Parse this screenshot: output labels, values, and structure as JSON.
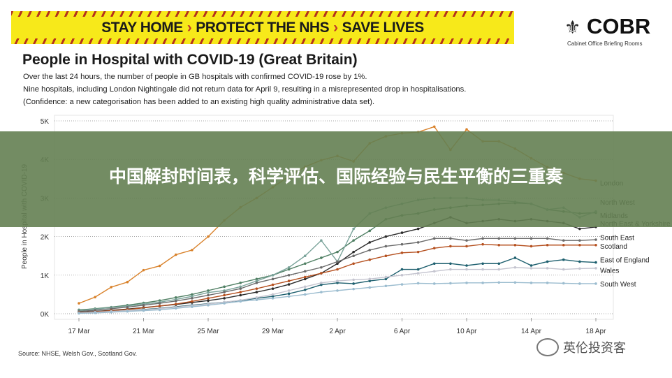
{
  "banner": {
    "part1": "STAY HOME",
    "part2": "PROTECT THE NHS",
    "part3": "SAVE LIVES",
    "chevron": "›"
  },
  "logo": {
    "title": "COBR",
    "subtitle": "Cabinet Office Briefing Rooms"
  },
  "header": {
    "title": "People in Hospital with COVID-19 (Great Britain)",
    "lines": [
      "Over the last 24 hours, the number of people in GB hospitals with confirmed COVID-19 rose by 1%.",
      "Nine hospitals, including London Nightingale did not return data for April 9, resulting in a misrepresented drop in hospitalisations.",
      "(Confidence: a new categorisation has been added to an existing high quality administrative data set)."
    ]
  },
  "source": "Source: NHSE, Welsh Gov., Scotland Gov.",
  "overlay": {
    "headline": "中国解封时间表，科学评估、国际经验与民生平衡的三重奏"
  },
  "watermark": {
    "text": "英伦投资客",
    "icon": "wechat-icon"
  },
  "chart_data": {
    "type": "line",
    "title": "People in Hospital with COVID-19 (Great Britain)",
    "xlabel": "",
    "ylabel": "People in Hospital with COVID-19",
    "ylim": [
      0,
      5000
    ],
    "yticks": [
      0,
      1000,
      2000,
      3000,
      4000,
      5000
    ],
    "ytick_labels": [
      "0K",
      "1K",
      "2K",
      "3K",
      "4K",
      "5K"
    ],
    "x_start": "17 Mar",
    "n_days": 33,
    "xtick_labels": [
      "17 Mar",
      "21 Mar",
      "25 Mar",
      "29 Mar",
      "2 Apr",
      "6 Apr",
      "10 Apr",
      "14 Apr",
      "18 Apr"
    ],
    "xtick_days": [
      0,
      4,
      8,
      12,
      16,
      20,
      24,
      28,
      32
    ],
    "grid": true,
    "series": [
      {
        "name": "London",
        "color": "#d9822b",
        "values": [
          270,
          430,
          690,
          820,
          1130,
          1240,
          1530,
          1650,
          2000,
          2420,
          2760,
          3000,
          3280,
          3560,
          3810,
          3980,
          4090,
          3950,
          4420,
          4600,
          4680,
          4710,
          4850,
          4250,
          4780,
          4470,
          4470,
          4280,
          4030,
          3800,
          3650,
          3500,
          3450
        ]
      },
      {
        "name": "North West",
        "color": "#4f7f63",
        "values": [
          100,
          130,
          170,
          220,
          280,
          340,
          420,
          500,
          600,
          700,
          800,
          900,
          1000,
          1150,
          1300,
          1450,
          1600,
          1900,
          2150,
          2450,
          2550,
          2600,
          2700,
          2750,
          2800,
          2820,
          2850,
          2870,
          2850,
          2700,
          2650,
          2600,
          2620
        ]
      },
      {
        "name": "Midlands",
        "color": "#7aa39a",
        "values": [
          80,
          120,
          160,
          200,
          250,
          300,
          370,
          450,
          550,
          600,
          700,
          850,
          1000,
          1200,
          1500,
          1900,
          1350,
          2200,
          2600,
          2750,
          2850,
          2950,
          3000,
          3000,
          3000,
          2950,
          2950,
          2900,
          2850,
          2700,
          2750,
          2500,
          2650
        ]
      },
      {
        "name": "North East & Yorkshire",
        "color": "#2b2b2b",
        "values": [
          40,
          60,
          90,
          120,
          160,
          200,
          240,
          290,
          340,
          400,
          480,
          560,
          650,
          760,
          900,
          1050,
          1300,
          1600,
          1850,
          2000,
          2100,
          2200,
          2350,
          2500,
          2350,
          2400,
          2450,
          2400,
          2450,
          2400,
          2350,
          2200,
          2250
        ]
      },
      {
        "name": "South East",
        "color": "#6b6b6b",
        "values": [
          60,
          90,
          130,
          170,
          220,
          270,
          330,
          400,
          480,
          560,
          650,
          800,
          900,
          1000,
          1100,
          1200,
          1350,
          1500,
          1650,
          1750,
          1800,
          1850,
          1950,
          1950,
          1900,
          1950,
          1950,
          1950,
          1950,
          1950,
          1900,
          1900,
          1920
        ]
      },
      {
        "name": "Scotland",
        "color": "#b5501f",
        "values": [
          30,
          50,
          80,
          110,
          150,
          200,
          250,
          320,
          400,
          480,
          560,
          650,
          750,
          850,
          950,
          1050,
          1150,
          1300,
          1400,
          1500,
          1580,
          1600,
          1700,
          1750,
          1750,
          1800,
          1780,
          1780,
          1750,
          1780,
          1780,
          1780,
          1780
        ]
      },
      {
        "name": "East of England",
        "color": "#1d5f6e",
        "values": [
          20,
          40,
          60,
          80,
          110,
          140,
          180,
          220,
          260,
          300,
          340,
          400,
          450,
          520,
          620,
          750,
          800,
          780,
          850,
          900,
          1150,
          1150,
          1300,
          1300,
          1250,
          1300,
          1300,
          1450,
          1250,
          1350,
          1400,
          1350,
          1330
        ]
      },
      {
        "name": "Wales",
        "color": "#c4c4cf",
        "values": [
          20,
          40,
          60,
          80,
          100,
          130,
          170,
          210,
          250,
          300,
          350,
          420,
          500,
          600,
          700,
          800,
          850,
          880,
          900,
          950,
          1000,
          1050,
          1100,
          1150,
          1150,
          1150,
          1150,
          1200,
          1180,
          1180,
          1150,
          1170,
          1180
        ]
      },
      {
        "name": "South West",
        "color": "#9bbccf",
        "values": [
          10,
          20,
          40,
          60,
          80,
          100,
          140,
          180,
          220,
          270,
          320,
          360,
          400,
          450,
          500,
          560,
          600,
          640,
          680,
          720,
          760,
          790,
          780,
          790,
          800,
          800,
          810,
          810,
          800,
          800,
          790,
          780,
          780
        ]
      }
    ]
  }
}
